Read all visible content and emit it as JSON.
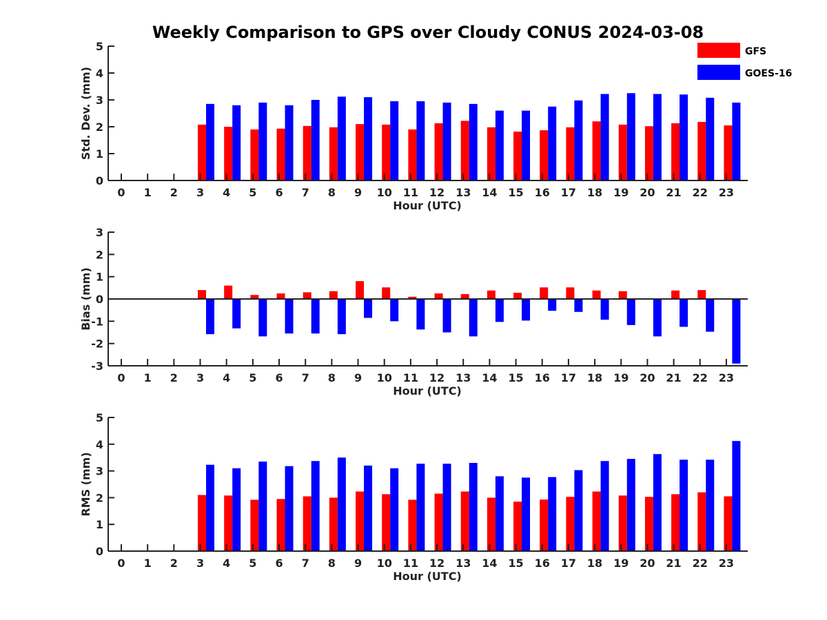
{
  "title": "Weekly Comparison to GPS over Cloudy CONUS 2024-03-08",
  "legend": {
    "placement": "top-right",
    "items": [
      {
        "name": "GFS",
        "color": "#ff0000"
      },
      {
        "name": "GOES-16",
        "color": "#0000ff"
      }
    ]
  },
  "chart_data": [
    {
      "type": "bar",
      "xlabel": "Hour (UTC)",
      "ylabel": "Std. Dev. (mm)",
      "ylim": [
        0,
        5
      ],
      "yticks": [
        0,
        1,
        2,
        3,
        4,
        5
      ],
      "categories": [
        "0",
        "1",
        "2",
        "3",
        "4",
        "5",
        "6",
        "7",
        "8",
        "9",
        "10",
        "11",
        "12",
        "13",
        "14",
        "15",
        "16",
        "17",
        "18",
        "19",
        "20",
        "21",
        "22",
        "23"
      ],
      "series": [
        {
          "name": "GFS",
          "color": "#ff0000",
          "values": [
            null,
            null,
            null,
            2.08,
            2.0,
            1.9,
            1.93,
            2.03,
            1.98,
            2.1,
            2.08,
            1.9,
            2.13,
            2.22,
            1.98,
            1.82,
            1.87,
            1.98,
            2.2,
            2.08,
            2.02,
            2.13,
            2.18,
            2.05
          ]
        },
        {
          "name": "GOES-16",
          "color": "#0000ff",
          "values": [
            null,
            null,
            null,
            2.85,
            2.8,
            2.9,
            2.8,
            3.0,
            3.12,
            3.1,
            2.95,
            2.95,
            2.9,
            2.85,
            2.6,
            2.6,
            2.75,
            2.98,
            3.22,
            3.25,
            3.22,
            3.2,
            3.08,
            2.9
          ]
        }
      ]
    },
    {
      "type": "bar",
      "xlabel": "Hour (UTC)",
      "ylabel": "Bias (mm)",
      "ylim": [
        -3,
        3
      ],
      "yticks": [
        -3,
        -2,
        -1,
        0,
        1,
        2,
        3
      ],
      "categories": [
        "0",
        "1",
        "2",
        "3",
        "4",
        "5",
        "6",
        "7",
        "8",
        "9",
        "10",
        "11",
        "12",
        "13",
        "14",
        "15",
        "16",
        "17",
        "18",
        "19",
        "20",
        "21",
        "22",
        "23"
      ],
      "series": [
        {
          "name": "GFS",
          "color": "#ff0000",
          "values": [
            null,
            null,
            null,
            0.4,
            0.6,
            0.18,
            0.25,
            0.3,
            0.35,
            0.8,
            0.52,
            0.1,
            0.25,
            0.22,
            0.38,
            0.28,
            0.52,
            0.52,
            0.38,
            0.35,
            -0.02,
            0.38,
            0.4,
            -0.03
          ]
        },
        {
          "name": "GOES-16",
          "color": "#0000ff",
          "values": [
            null,
            null,
            null,
            -1.58,
            -1.32,
            -1.68,
            -1.55,
            -1.55,
            -1.58,
            -0.85,
            -1.0,
            -1.37,
            -1.5,
            -1.68,
            -1.03,
            -0.97,
            -0.53,
            -0.58,
            -0.93,
            -1.17,
            -1.68,
            -1.25,
            -1.47,
            -2.9
          ]
        }
      ]
    },
    {
      "type": "bar",
      "xlabel": "Hour (UTC)",
      "ylabel": "RMS (mm)",
      "ylim": [
        0,
        5
      ],
      "yticks": [
        0,
        1,
        2,
        3,
        4,
        5
      ],
      "categories": [
        "0",
        "1",
        "2",
        "3",
        "4",
        "5",
        "6",
        "7",
        "8",
        "9",
        "10",
        "11",
        "12",
        "13",
        "14",
        "15",
        "16",
        "17",
        "18",
        "19",
        "20",
        "21",
        "22",
        "23"
      ],
      "series": [
        {
          "name": "GFS",
          "color": "#ff0000",
          "values": [
            null,
            null,
            null,
            2.1,
            2.08,
            1.92,
            1.95,
            2.05,
            2.0,
            2.23,
            2.13,
            1.92,
            2.15,
            2.23,
            2.0,
            1.85,
            1.93,
            2.03,
            2.23,
            2.08,
            2.03,
            2.13,
            2.2,
            2.05
          ]
        },
        {
          "name": "GOES-16",
          "color": "#0000ff",
          "values": [
            null,
            null,
            null,
            3.23,
            3.1,
            3.35,
            3.18,
            3.37,
            3.5,
            3.2,
            3.1,
            3.27,
            3.27,
            3.3,
            2.8,
            2.75,
            2.77,
            3.03,
            3.37,
            3.45,
            3.63,
            3.42,
            3.42,
            4.12
          ]
        }
      ]
    }
  ]
}
